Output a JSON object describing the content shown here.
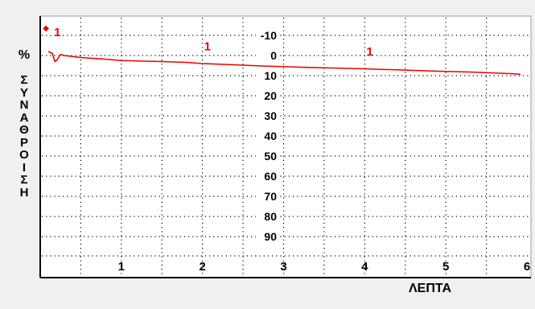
{
  "chart_data": {
    "type": "line",
    "title": "",
    "xlabel": "ΛΕΠΤΑ",
    "ylabel_symbol": "%",
    "ylabel": "ΣΥΝΑΘΡΟΙΣΗ",
    "xlim": [
      0,
      6
    ],
    "ylim": [
      -10,
      100
    ],
    "y_inverted": true,
    "grid": true,
    "x_ticks": [
      1,
      2,
      3,
      4,
      5,
      6
    ],
    "y_ticks": [
      -10,
      0,
      10,
      20,
      30,
      40,
      50,
      60,
      70,
      80,
      90
    ],
    "series": [
      {
        "color": "#ee0000",
        "x": [
          0.1,
          0.15,
          0.18,
          0.21,
          0.25,
          0.3,
          0.5,
          0.8,
          1.0,
          1.2,
          1.5,
          1.8,
          2.0,
          2.2,
          2.5,
          2.8,
          3.0,
          3.2,
          3.5,
          3.8,
          4.0,
          4.2,
          4.4,
          4.6,
          5.0,
          5.3,
          5.6,
          5.8,
          5.92
        ],
        "values": [
          -2,
          -1,
          3,
          2,
          -0.5,
          0,
          1,
          1.8,
          2.5,
          2.7,
          3,
          3.4,
          4,
          4.3,
          4.8,
          5.3,
          5.5,
          5.8,
          6.1,
          6.4,
          6.6,
          6.9,
          7.1,
          7.4,
          7.9,
          8.2,
          8.7,
          9,
          9.3
        ]
      }
    ],
    "markers": [
      {
        "x": 0.17,
        "y": -12,
        "label": "1"
      },
      {
        "x": 2.02,
        "y": -5,
        "label": "1"
      },
      {
        "x": 4.02,
        "y": -2.5,
        "label": "1"
      }
    ],
    "start_marker": {
      "x": 0.07,
      "y": -14,
      "symbol": "◆"
    }
  }
}
